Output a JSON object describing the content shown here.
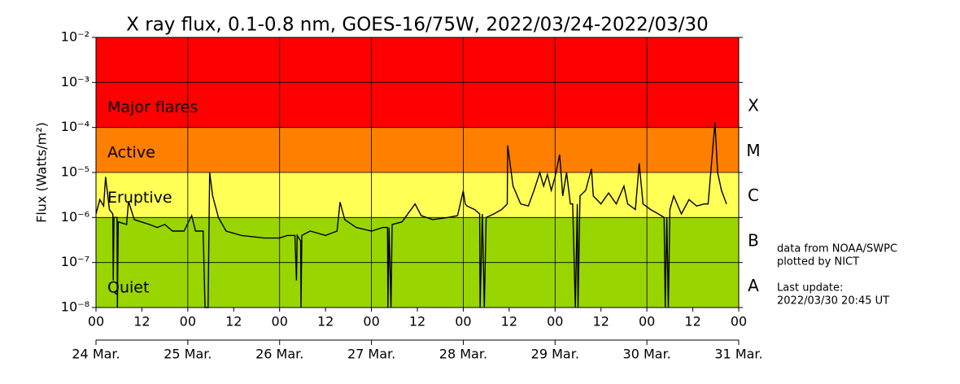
{
  "chart_data": {
    "type": "line",
    "title": "X ray flux, 0.1-0.8 nm, GOES-16/75W, 2022/03/24-2022/03/30",
    "y_label": "Flux (Watts/m²)",
    "log_y": true,
    "grid": true,
    "color": "#000000",
    "xlim": [
      0,
      168
    ],
    "xticks": [
      {
        "value": 0,
        "label": "00"
      },
      {
        "value": 12,
        "label": "12"
      },
      {
        "value": 24,
        "label": "00"
      },
      {
        "value": 36,
        "label": "12"
      },
      {
        "value": 48,
        "label": "00"
      },
      {
        "value": 60,
        "label": "12"
      },
      {
        "value": 72,
        "label": "00"
      },
      {
        "value": 84,
        "label": "12"
      },
      {
        "value": 96,
        "label": "00"
      },
      {
        "value": 108,
        "label": "12"
      },
      {
        "value": 120,
        "label": "00"
      },
      {
        "value": 132,
        "label": "12"
      },
      {
        "value": 144,
        "label": "00"
      },
      {
        "value": 156,
        "label": "12"
      },
      {
        "value": 168,
        "label": "00"
      }
    ],
    "date_ticks": [
      {
        "value": 0,
        "label": "24 Mar."
      },
      {
        "value": 24,
        "label": "25 Mar."
      },
      {
        "value": 48,
        "label": "26 Mar."
      },
      {
        "value": 72,
        "label": "27 Mar."
      },
      {
        "value": 96,
        "label": "28 Mar."
      },
      {
        "value": 120,
        "label": "29 Mar."
      },
      {
        "value": 144,
        "label": "30 Mar."
      },
      {
        "value": 168,
        "label": "31 Mar."
      }
    ],
    "ylim": [
      1e-08,
      0.01
    ],
    "yticks": [
      {
        "value": 1e-08,
        "label": "10⁻⁸"
      },
      {
        "value": 1e-07,
        "label": "10⁻⁷"
      },
      {
        "value": 1e-06,
        "label": "10⁻⁶"
      },
      {
        "value": 1e-05,
        "label": "10⁻⁵"
      },
      {
        "value": 0.0001,
        "label": "10⁻⁴"
      },
      {
        "value": 0.001,
        "label": "10⁻³"
      },
      {
        "value": 0.01,
        "label": "10⁻²"
      }
    ],
    "bands": [
      {
        "label": "Major flares",
        "from": 0.0001,
        "to": 0.01,
        "color": "#ff0000"
      },
      {
        "label": "Active",
        "from": 1e-05,
        "to": 0.0001,
        "color": "#ff7f00"
      },
      {
        "label": "Eruptive",
        "from": 1e-06,
        "to": 1e-05,
        "color": "#ffff55"
      },
      {
        "label": "Quiet",
        "from": 1e-08,
        "to": 1e-06,
        "color": "#99d500"
      }
    ],
    "classes": [
      {
        "label": "X",
        "from": 0.0001,
        "to": 0.001
      },
      {
        "label": "M",
        "from": 1e-05,
        "to": 0.0001
      },
      {
        "label": "C",
        "from": 1e-06,
        "to": 1e-05
      },
      {
        "label": "B",
        "from": 1e-07,
        "to": 1e-06
      },
      {
        "label": "A",
        "from": 1e-08,
        "to": 1e-07
      }
    ],
    "notes": [
      "data from NOAA/SWPC",
      "plotted by NICT",
      "Last update:",
      "2022/03/30 20:45 UT"
    ],
    "x": [
      0,
      1,
      2,
      2.5,
      3.5,
      4.4,
      4.5,
      4.7,
      5.5,
      5.6,
      5.8,
      8,
      8.5,
      10,
      14,
      16,
      18,
      20,
      23,
      25,
      26,
      28,
      28.5,
      29.3,
      29.7,
      30.5,
      32,
      34,
      38,
      44,
      48,
      50,
      52,
      52.4,
      52.6,
      53.5,
      53.6,
      53.8,
      56,
      60,
      63,
      63.8,
      65,
      68,
      72,
      75,
      76.2,
      76.3,
      76.6,
      77.1,
      77.4,
      80,
      83.4,
      85,
      88,
      92,
      94.5,
      96,
      96.5,
      97,
      99,
      100.3,
      100.4,
      101,
      101.5,
      102,
      104,
      106,
      107.5,
      107.6,
      109,
      111,
      113,
      114.5,
      116,
      117,
      118,
      119,
      120,
      121.2,
      122,
      123,
      124,
      124.6,
      125.3,
      125.8,
      126,
      126.5,
      128,
      129.5,
      130,
      132,
      134,
      136,
      138,
      139,
      141,
      142,
      143,
      145,
      147,
      148.5,
      148.8,
      149.2,
      149.6,
      150,
      151,
      153,
      155,
      157,
      159,
      160,
      161.8,
      162.5,
      163.5,
      164.8
    ],
    "values": [
      1.2e-06,
      2.5e-06,
      1.8e-06,
      8e-06,
      1.5e-06,
      1.2e-06,
      4e-08,
      1e-06,
      1e-06,
      1e-08,
      8e-07,
      7e-07,
      2.3e-06,
      9e-07,
      7e-07,
      6e-07,
      7e-07,
      5e-07,
      5e-07,
      1.1e-06,
      5e-07,
      5e-07,
      1e-08,
      1e-08,
      1e-05,
      3e-06,
      1e-06,
      5e-07,
      4e-07,
      3.5e-07,
      3.5e-07,
      4e-07,
      4e-07,
      4e-08,
      4e-07,
      3e-07,
      1e-08,
      4e-07,
      5e-07,
      4e-07,
      5e-07,
      2.2e-06,
      9e-07,
      6e-07,
      5e-07,
      6e-07,
      6e-07,
      1e-08,
      6e-07,
      1e-08,
      7e-07,
      8e-07,
      2e-06,
      1.1e-06,
      9e-07,
      1e-06,
      1.1e-06,
      3.9e-06,
      2e-06,
      1.8e-06,
      1.5e-06,
      1.2e-06,
      1e-08,
      1.2e-06,
      1e-08,
      1e-06,
      1.2e-06,
      1.5e-06,
      2e-06,
      4e-05,
      5e-06,
      2e-06,
      1.8e-06,
      4e-06,
      1e-05,
      5e-06,
      9e-06,
      4e-06,
      8e-06,
      2.5e-05,
      3e-06,
      1e-05,
      2e-06,
      2e-06,
      1e-08,
      2e-06,
      1e-08,
      3e-06,
      4e-06,
      1.2e-05,
      3e-06,
      2e-06,
      3.5e-06,
      2e-06,
      5e-06,
      2e-06,
      1.5e-06,
      1.6e-05,
      2e-06,
      1.5e-06,
      1.2e-06,
      1e-06,
      1e-08,
      1e-06,
      1e-08,
      1.5e-06,
      3e-06,
      1.2e-06,
      2.5e-06,
      1.8e-06,
      2e-06,
      2e-06,
      0.00013,
      1e-05,
      4e-06,
      2e-06
    ]
  }
}
